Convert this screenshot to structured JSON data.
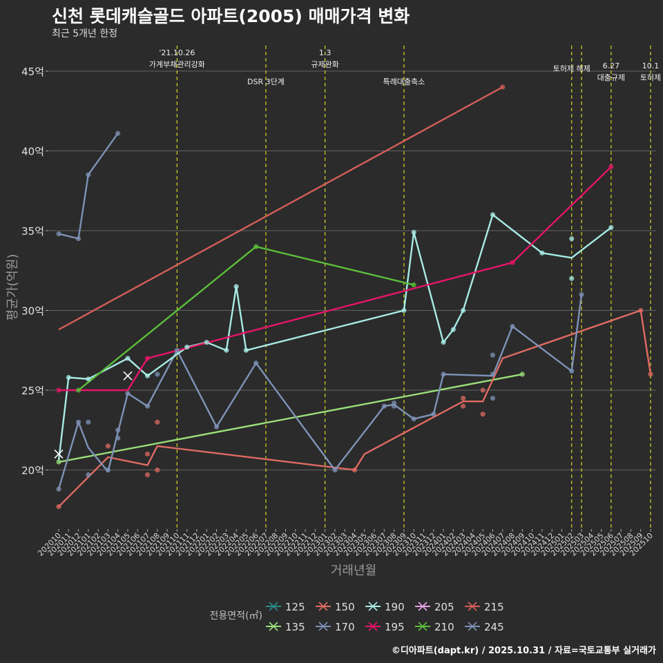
{
  "title": "신천 롯데캐슬골드 아파트(2005) 매매가격 변화",
  "subtitle": "최근 5개년 한정",
  "caption": "©디아파트(dapt.kr) / 2025.10.31 / 자료=국토교통부 실거래가",
  "chart_data": {
    "type": "line",
    "title": "신천 롯데캐슬골드 아파트(2005) 매매가격 변화",
    "xlabel": "거래년월",
    "ylabel": "평균가(억원)",
    "ylim": [
      16.3,
      46.6
    ],
    "yticks": [
      20,
      25,
      30,
      35,
      40,
      45
    ],
    "ytick_labels": [
      "20억",
      "25억",
      "30억",
      "35억",
      "40억",
      "45억"
    ],
    "x_categories": [
      "202010",
      "202011",
      "202012",
      "202101",
      "202102",
      "202103",
      "202104",
      "202105",
      "202106",
      "202107",
      "202108",
      "202109",
      "202110",
      "202111",
      "202112",
      "202201",
      "202202",
      "202203",
      "202204",
      "202205",
      "202206",
      "202207",
      "202208",
      "202209",
      "202210",
      "202211",
      "202212",
      "202301",
      "202302",
      "202303",
      "202304",
      "202305",
      "202306",
      "202307",
      "202308",
      "202309",
      "202310",
      "202311",
      "202312",
      "202401",
      "202402",
      "202403",
      "202404",
      "202405",
      "202406",
      "202407",
      "202408",
      "202409",
      "202410",
      "202411",
      "202412",
      "202501",
      "202502",
      "202503",
      "202504",
      "202505",
      "202506",
      "202507",
      "202508",
      "202509",
      "202510"
    ],
    "legend_title": "전용면적(㎡)",
    "events": [
      {
        "x": "202110",
        "label": "'21.10.26\n가계부채관리강화",
        "row": 0
      },
      {
        "x": "202207",
        "label": "DSR 3단계",
        "row": 1
      },
      {
        "x": "202301",
        "label": "1.3\n규제완화",
        "row": 0
      },
      {
        "x": "202309",
        "label": "특례대출축소",
        "row": 1
      },
      {
        "x": "202502",
        "label": "토허제 해제",
        "row": 0
      },
      {
        "x": "202503",
        "label": "",
        "row": 0
      },
      {
        "x": "202506",
        "label": "6.27\n대출규제",
        "row": 2
      },
      {
        "x": "202510",
        "label": "10.1\n토허제",
        "row": 2
      }
    ],
    "series": [
      {
        "name": "125",
        "color": "#2a8a8a",
        "points": [],
        "trend": []
      },
      {
        "name": "135",
        "color": "#9be07a",
        "points": [
          [
            "202010",
            20.5
          ],
          [
            "202409",
            26.0
          ]
        ],
        "trend": [
          [
            "202010",
            20.5
          ],
          [
            "202409",
            26.0
          ]
        ]
      },
      {
        "name": "150",
        "color": "#e06b62",
        "points": [
          [
            "202010",
            17.7
          ],
          [
            "202103",
            21.5
          ],
          [
            "202107",
            21.0
          ],
          [
            "202107",
            19.7
          ],
          [
            "202108",
            23.0
          ],
          [
            "202108",
            20.0
          ],
          [
            "202304",
            20.0
          ],
          [
            "202403",
            24.5
          ],
          [
            "202403",
            24.0
          ],
          [
            "202405",
            25.0
          ],
          [
            "202405",
            23.5
          ],
          [
            "202509",
            30.0
          ],
          [
            "202510",
            26.0
          ]
        ],
        "trend": [
          [
            "202010",
            17.7
          ],
          [
            "202103",
            20.8
          ],
          [
            "202107",
            20.3
          ],
          [
            "202108",
            21.5
          ],
          [
            "202304",
            20.0
          ],
          [
            "202305",
            21.0
          ],
          [
            "202403",
            24.3
          ],
          [
            "202405",
            24.3
          ],
          [
            "202407",
            27.0
          ],
          [
            "202509",
            30.0
          ],
          [
            "202510",
            26.0
          ]
        ]
      },
      {
        "name": "170",
        "color": "#7f93b8",
        "points": [
          [
            "202010",
            18.8
          ],
          [
            "202012",
            23.0
          ],
          [
            "202101",
            23.0
          ],
          [
            "202101",
            19.7
          ],
          [
            "202103",
            20.0
          ],
          [
            "202104",
            22.0
          ],
          [
            "202104",
            22.5
          ],
          [
            "202105",
            24.8
          ],
          [
            "202107",
            24.0
          ],
          [
            "202108",
            26.0
          ],
          [
            "202110",
            27.5
          ],
          [
            "202202",
            22.7
          ],
          [
            "202206",
            26.7
          ],
          [
            "202302",
            20.0
          ],
          [
            "202307",
            24.0
          ],
          [
            "202308",
            24.2
          ],
          [
            "202308",
            24.0
          ],
          [
            "202310",
            23.2
          ],
          [
            "202312",
            23.5
          ],
          [
            "202401",
            26.0
          ],
          [
            "202406",
            27.2
          ],
          [
            "202406",
            26.0
          ],
          [
            "202406",
            24.5
          ],
          [
            "202408",
            29.0
          ],
          [
            "202502",
            26.2
          ],
          [
            "202503",
            31.0
          ]
        ],
        "trend": [
          [
            "202010",
            18.8
          ],
          [
            "202012",
            23.0
          ],
          [
            "202101",
            21.4
          ],
          [
            "202103",
            19.9
          ],
          [
            "202105",
            24.8
          ],
          [
            "202107",
            24.0
          ],
          [
            "202110",
            27.5
          ],
          [
            "202202",
            22.7
          ],
          [
            "202206",
            26.7
          ],
          [
            "202302",
            20.0
          ],
          [
            "202307",
            24.0
          ],
          [
            "202308",
            24.1
          ],
          [
            "202310",
            23.2
          ],
          [
            "202312",
            23.5
          ],
          [
            "202401",
            26.0
          ],
          [
            "202406",
            25.9
          ],
          [
            "202408",
            29.0
          ],
          [
            "202502",
            26.2
          ],
          [
            "202503",
            31.0
          ]
        ]
      },
      {
        "name": "190",
        "color": "#a8ece6",
        "points": [
          [
            "202011",
            25.8
          ],
          [
            "202101",
            25.7
          ],
          [
            "202105",
            27.0
          ],
          [
            "202107",
            25.9
          ],
          [
            "202111",
            27.7
          ],
          [
            "202201",
            28.0
          ],
          [
            "202203",
            27.5
          ],
          [
            "202204",
            31.5
          ],
          [
            "202205",
            27.5
          ],
          [
            "202309",
            30.0
          ],
          [
            "202310",
            34.9
          ],
          [
            "202401",
            28.0
          ],
          [
            "202402",
            28.8
          ],
          [
            "202403",
            30.0
          ],
          [
            "202406",
            36.0
          ],
          [
            "202411",
            33.6
          ],
          [
            "202502",
            34.5
          ],
          [
            "202502",
            32.0
          ],
          [
            "202506",
            35.2
          ]
        ],
        "trend": [
          [
            "202010",
            20.6
          ],
          [
            "202011",
            25.8
          ],
          [
            "202101",
            25.7
          ],
          [
            "202105",
            27.0
          ],
          [
            "202107",
            25.9
          ],
          [
            "202111",
            27.7
          ],
          [
            "202201",
            28.0
          ],
          [
            "202203",
            27.5
          ],
          [
            "202204",
            31.5
          ],
          [
            "202205",
            27.5
          ],
          [
            "202309",
            30.0
          ],
          [
            "202310",
            34.9
          ],
          [
            "202401",
            28.0
          ],
          [
            "202402",
            28.8
          ],
          [
            "202403",
            30.0
          ],
          [
            "202406",
            36.0
          ],
          [
            "202411",
            33.6
          ],
          [
            "202502",
            33.3
          ],
          [
            "202506",
            35.2
          ]
        ]
      },
      {
        "name": "195",
        "color": "#e8146a",
        "points": [
          [
            "202010",
            25.0
          ],
          [
            "202107",
            27.0
          ],
          [
            "202408",
            33.0
          ],
          [
            "202506",
            39.0
          ]
        ],
        "trend": [
          [
            "202010",
            25.0
          ],
          [
            "202105",
            25.0
          ],
          [
            "202107",
            27.0
          ],
          [
            "202408",
            33.0
          ],
          [
            "202506",
            39.0
          ]
        ]
      },
      {
        "name": "205",
        "color": "#e6a0e6",
        "points": [],
        "trend": []
      },
      {
        "name": "210",
        "color": "#5bbf3a",
        "points": [
          [
            "202012",
            25.0
          ],
          [
            "202206",
            34.0
          ],
          [
            "202310",
            31.6
          ]
        ],
        "trend": [
          [
            "202012",
            25.0
          ],
          [
            "202206",
            34.0
          ],
          [
            "202310",
            31.6
          ]
        ]
      },
      {
        "name": "215",
        "color": "#d55e58",
        "points": [
          [
            "202407",
            44.0
          ]
        ],
        "trend": [
          [
            "202010",
            28.8
          ],
          [
            "202407",
            44.0
          ]
        ]
      },
      {
        "name": "245",
        "color": "#7d93b6",
        "points": [
          [
            "202010",
            34.8
          ],
          [
            "202012",
            34.5
          ],
          [
            "202101",
            38.5
          ],
          [
            "202104",
            41.1
          ]
        ],
        "trend": [
          [
            "202010",
            34.8
          ],
          [
            "202012",
            34.5
          ],
          [
            "202101",
            38.5
          ],
          [
            "202104",
            41.1
          ]
        ]
      }
    ],
    "x_markers": [
      {
        "x": "202010",
        "y": 21.0
      },
      {
        "x": "202105",
        "y": 25.9
      }
    ]
  }
}
